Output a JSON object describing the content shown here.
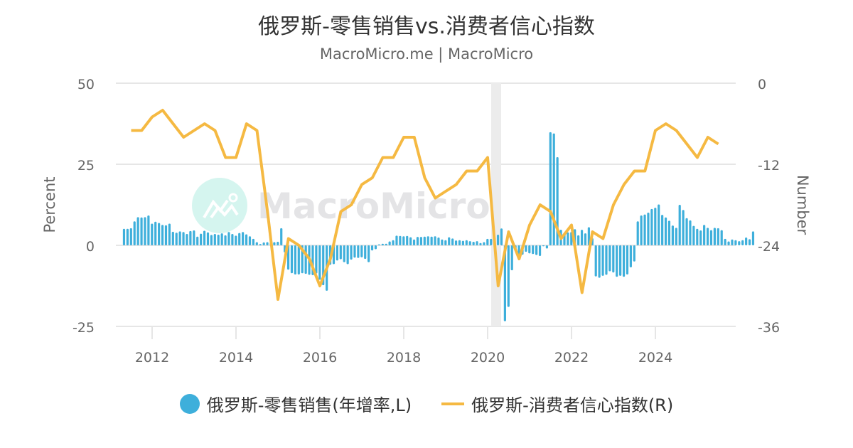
{
  "header": {
    "title": "俄罗斯-零售销售vs.消费者信心指数",
    "subtitle": "MacroMicro.me | MacroMicro"
  },
  "watermark": {
    "text": "MacroMicro"
  },
  "colors": {
    "bars": "#3eafdb",
    "line": "#f5b942",
    "grid": "#e6e6e6",
    "recession_band": "#ececec"
  },
  "legend": {
    "items": [
      {
        "label": "俄罗斯-零售销售(年增率,L)",
        "marker": "circle",
        "color": "#3eafdb"
      },
      {
        "label": "俄罗斯-消费者信心指数(R)",
        "marker": "line",
        "color": "#f5b942"
      }
    ]
  },
  "chart_data": {
    "type": "bar+line",
    "title": "俄罗斯-零售销售vs.消费者信心指数",
    "subtitle": "MacroMicro.me | MacroMicro",
    "xlabel": "",
    "x_ticks": [
      "2012",
      "2014",
      "2016",
      "2018",
      "2020",
      "2022",
      "2024"
    ],
    "left_axis": {
      "label": "Percent",
      "ticks": [
        50,
        25,
        0,
        -25
      ],
      "range": [
        -25,
        50
      ]
    },
    "right_axis": {
      "label": "Number",
      "ticks": [
        0,
        -12,
        -24,
        -36
      ],
      "range": [
        -36,
        0
      ]
    },
    "shaded_region": {
      "from": 2020.1,
      "to": 2020.3
    },
    "legend_position": "bottom",
    "grid": true,
    "series": [
      {
        "name": "俄罗斯-零售销售(年增率,L)",
        "type": "bar",
        "axis": "left",
        "start": 2011.33,
        "step_months": 1,
        "values": [
          5.1,
          5.1,
          5.3,
          7.4,
          8.7,
          8.6,
          8.7,
          9.2,
          6.7,
          7.3,
          6.9,
          6.3,
          6.2,
          6.7,
          4.2,
          3.9,
          4.3,
          4.1,
          3.5,
          4.4,
          4.6,
          2.7,
          3.6,
          4.5,
          4.0,
          3.2,
          3.5,
          3.3,
          3.7,
          3.1,
          4.1,
          3.5,
          3.0,
          3.8,
          4.1,
          3.4,
          2.8,
          2.0,
          1.0,
          0.4,
          0.9,
          1.0,
          0.8,
          1.0,
          1.1,
          5.3,
          -2.2,
          -7.5,
          -8.6,
          -9.0,
          -9.0,
          -8.6,
          -8.8,
          -9.1,
          -9.2,
          -8.7,
          -10.6,
          -12.3,
          -14.0,
          -6.0,
          -5.8,
          -4.7,
          -4.3,
          -5.2,
          -5.8,
          -4.4,
          -3.8,
          -3.9,
          -3.7,
          -4.2,
          -5.2,
          -1.6,
          -1.2,
          0.3,
          0.5,
          0.5,
          1.2,
          1.6,
          3.0,
          2.9,
          2.8,
          2.9,
          2.5,
          1.8,
          2.6,
          2.6,
          2.7,
          2.8,
          2.7,
          2.8,
          2.4,
          1.8,
          1.6,
          2.5,
          2.1,
          1.5,
          1.6,
          1.4,
          1.6,
          1.3,
          1.1,
          1.3,
          0.7,
          1.0,
          2.0,
          2.0,
          2.5,
          3.3,
          5.2,
          -23.4,
          -19.0,
          -7.7,
          -1.6,
          -2.8,
          -2.9,
          -2.0,
          -2.5,
          -2.7,
          -3.0,
          -3.3,
          -0.3,
          -1.0,
          34.9,
          34.5,
          27.2,
          4.8,
          3.5,
          4.0,
          4.1,
          5.0,
          3.1,
          4.8,
          3.7,
          5.6,
          2.2,
          -9.6,
          -10.0,
          -9.4,
          -9.1,
          -8.0,
          -8.4,
          -9.7,
          -9.4,
          -9.7,
          -9.0,
          -6.8,
          -5.0,
          7.4,
          9.2,
          9.5,
          10.1,
          11.2,
          11.6,
          12.6,
          9.4,
          8.6,
          7.6,
          6.1,
          5.4,
          12.5,
          10.9,
          8.4,
          7.7,
          6.0,
          5.1,
          4.6,
          6.3,
          5.4,
          4.7,
          5.4,
          5.3,
          4.7,
          2.0,
          1.2,
          1.8,
          1.6,
          1.3,
          1.6,
          2.4,
          1.9,
          4.3
        ]
      },
      {
        "name": "俄罗斯-消费者信心指数(R)",
        "type": "line",
        "axis": "right",
        "x": [
          2011.5,
          2011.75,
          2012.0,
          2012.25,
          2012.5,
          2012.75,
          2013.0,
          2013.25,
          2013.5,
          2013.75,
          2014.0,
          2014.25,
          2014.5,
          2014.75,
          2015.0,
          2015.25,
          2015.5,
          2015.75,
          2016.0,
          2016.25,
          2016.5,
          2016.75,
          2017.0,
          2017.25,
          2017.5,
          2017.75,
          2018.0,
          2018.25,
          2018.5,
          2018.75,
          2019.0,
          2019.25,
          2019.5,
          2019.75,
          2020.0,
          2020.25,
          2020.5,
          2020.75,
          2021.0,
          2021.25,
          2021.5,
          2021.75,
          2022.0,
          2022.25,
          2022.5,
          2022.75,
          2023.0,
          2023.25,
          2023.5,
          2023.75,
          2024.0,
          2024.25,
          2024.5,
          2024.75,
          2025.0,
          2025.25,
          2025.5
        ],
        "values": [
          -7,
          -7,
          -5,
          -4,
          -6,
          -8,
          -7,
          -6,
          -7,
          -11,
          -11,
          -6,
          -7,
          -19,
          -32,
          -23,
          -24,
          -26,
          -30,
          -26,
          -19,
          -18,
          -15,
          -14,
          -11,
          -11,
          -8,
          -8,
          -14,
          -17,
          -16,
          -15,
          -13,
          -13,
          -11,
          -30,
          -22,
          -26,
          -21,
          -18,
          -19,
          -23,
          -21,
          -31,
          -22,
          -23,
          -18,
          -15,
          -13,
          -13,
          -7,
          -6,
          -7,
          -9,
          -11,
          -8,
          -9
        ]
      }
    ]
  }
}
